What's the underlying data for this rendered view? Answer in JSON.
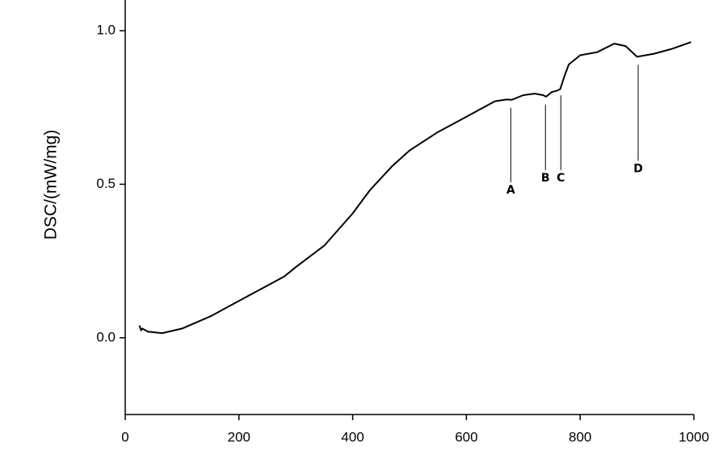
{
  "chart_data": {
    "type": "line",
    "y_label": "DSC/(mW/mg)",
    "x": [
      25,
      28,
      30,
      40,
      65,
      100,
      150,
      200,
      250,
      280,
      300,
      350,
      400,
      430,
      470,
      500,
      550,
      600,
      650,
      670,
      680,
      700,
      720,
      735,
      740,
      750,
      760,
      765,
      772,
      780,
      800,
      830,
      860,
      880,
      900,
      930,
      960,
      995
    ],
    "y": [
      0.04,
      0.024,
      0.03,
      0.02,
      0.015,
      0.03,
      0.07,
      0.12,
      0.17,
      0.2,
      0.23,
      0.3,
      0.405,
      0.48,
      0.56,
      0.61,
      0.67,
      0.72,
      0.77,
      0.776,
      0.775,
      0.79,
      0.795,
      0.79,
      0.785,
      0.8,
      0.805,
      0.81,
      0.85,
      0.89,
      0.92,
      0.93,
      0.958,
      0.95,
      0.915,
      0.925,
      0.94,
      0.963
    ],
    "color": "#000000",
    "xlim": [
      0,
      1000
    ],
    "xticks": [
      0,
      200,
      400,
      600,
      800,
      1000
    ],
    "ylim": [
      -0.25,
      1.1
    ],
    "yticks": [
      {
        "value": 0,
        "label": "0.0"
      },
      {
        "value": 0.5,
        "label": "0.5"
      },
      {
        "value": 1,
        "label": "1.0"
      }
    ],
    "annotations": [
      {
        "text": "A",
        "x": 678,
        "y": 0.48
      },
      {
        "text": "B",
        "x": 739,
        "y": 0.52
      },
      {
        "text": "C",
        "x": 766,
        "y": 0.52
      },
      {
        "text": "D",
        "x": 902,
        "y": 0.55
      }
    ]
  }
}
